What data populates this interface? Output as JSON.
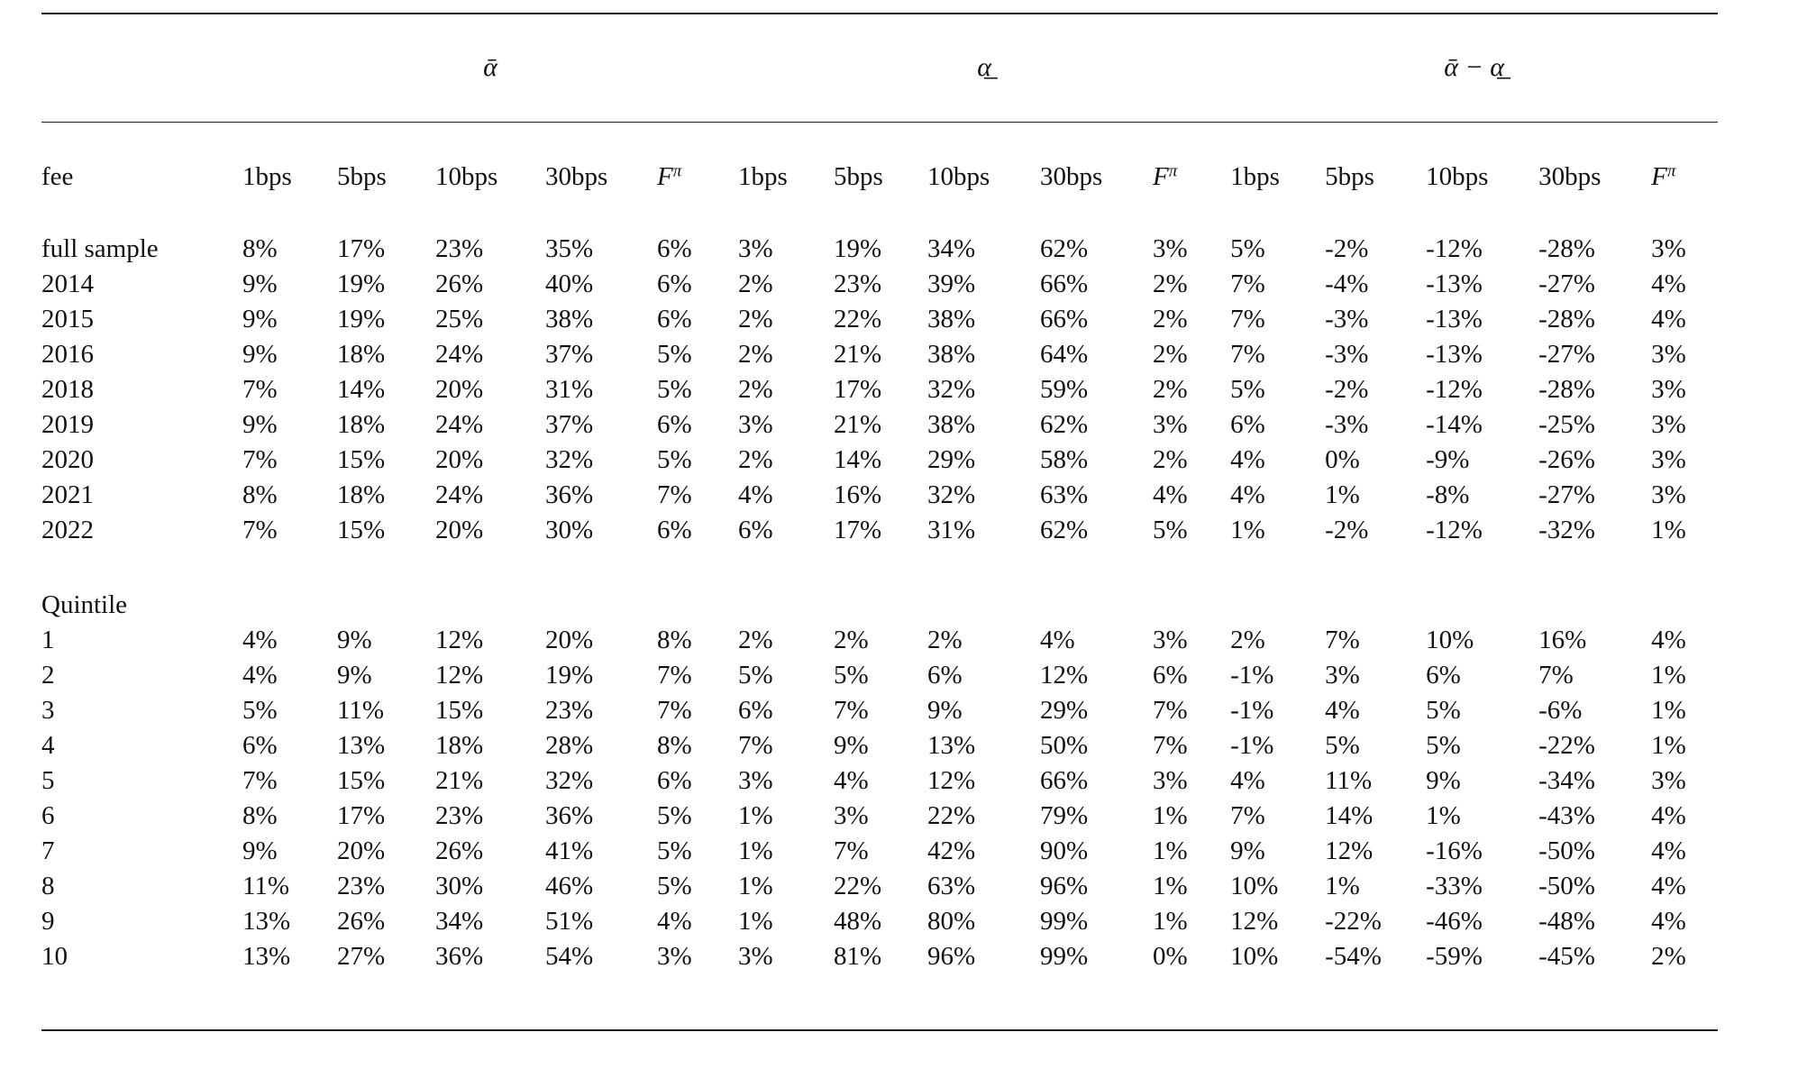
{
  "table": {
    "group_headers": [
      "ᾱ",
      "α̲",
      "ᾱ − α̲"
    ],
    "row_header": "fee",
    "sub_headers": [
      "1bps",
      "5bps",
      "10bps",
      "30bps",
      "F^π"
    ],
    "sections": [
      {
        "rows": [
          {
            "label": "full sample",
            "values": [
              "8%",
              "17%",
              "23%",
              "35%",
              "6%",
              "3%",
              "19%",
              "34%",
              "62%",
              "3%",
              "5%",
              "-2%",
              "-12%",
              "-28%",
              "3%"
            ]
          },
          {
            "label": "2014",
            "values": [
              "9%",
              "19%",
              "26%",
              "40%",
              "6%",
              "2%",
              "23%",
              "39%",
              "66%",
              "2%",
              "7%",
              "-4%",
              "-13%",
              "-27%",
              "4%"
            ]
          },
          {
            "label": "2015",
            "values": [
              "9%",
              "19%",
              "25%",
              "38%",
              "6%",
              "2%",
              "22%",
              "38%",
              "66%",
              "2%",
              "7%",
              "-3%",
              "-13%",
              "-28%",
              "4%"
            ]
          },
          {
            "label": "2016",
            "values": [
              "9%",
              "18%",
              "24%",
              "37%",
              "5%",
              "2%",
              "21%",
              "38%",
              "64%",
              "2%",
              "7%",
              "-3%",
              "-13%",
              "-27%",
              "3%"
            ]
          },
          {
            "label": "2018",
            "values": [
              "7%",
              "14%",
              "20%",
              "31%",
              "5%",
              "2%",
              "17%",
              "32%",
              "59%",
              "2%",
              "5%",
              "-2%",
              "-12%",
              "-28%",
              "3%"
            ]
          },
          {
            "label": "2019",
            "values": [
              "9%",
              "18%",
              "24%",
              "37%",
              "6%",
              "3%",
              "21%",
              "38%",
              "62%",
              "3%",
              "6%",
              "-3%",
              "-14%",
              "-25%",
              "3%"
            ]
          },
          {
            "label": "2020",
            "values": [
              "7%",
              "15%",
              "20%",
              "32%",
              "5%",
              "2%",
              "14%",
              "29%",
              "58%",
              "2%",
              "4%",
              "0%",
              "-9%",
              "-26%",
              "3%"
            ]
          },
          {
            "label": "2021",
            "values": [
              "8%",
              "18%",
              "24%",
              "36%",
              "7%",
              "4%",
              "16%",
              "32%",
              "63%",
              "4%",
              "4%",
              "1%",
              "-8%",
              "-27%",
              "3%"
            ]
          },
          {
            "label": "2022",
            "values": [
              "7%",
              "15%",
              "20%",
              "30%",
              "6%",
              "6%",
              "17%",
              "31%",
              "62%",
              "5%",
              "1%",
              "-2%",
              "-12%",
              "-32%",
              "1%"
            ]
          }
        ]
      },
      {
        "title": "Quintile",
        "rows": [
          {
            "label": "1",
            "values": [
              "4%",
              "9%",
              "12%",
              "20%",
              "8%",
              "2%",
              "2%",
              "2%",
              "4%",
              "3%",
              "2%",
              "7%",
              "10%",
              "16%",
              "4%"
            ]
          },
          {
            "label": "2",
            "values": [
              "4%",
              "9%",
              "12%",
              "19%",
              "7%",
              "5%",
              "5%",
              "6%",
              "12%",
              "6%",
              "-1%",
              "3%",
              "6%",
              "7%",
              "1%"
            ]
          },
          {
            "label": "3",
            "values": [
              "5%",
              "11%",
              "15%",
              "23%",
              "7%",
              "6%",
              "7%",
              "9%",
              "29%",
              "7%",
              "-1%",
              "4%",
              "5%",
              "-6%",
              "1%"
            ]
          },
          {
            "label": "4",
            "values": [
              "6%",
              "13%",
              "18%",
              "28%",
              "8%",
              "7%",
              "9%",
              "13%",
              "50%",
              "7%",
              "-1%",
              "5%",
              "5%",
              "-22%",
              "1%"
            ]
          },
          {
            "label": "5",
            "values": [
              "7%",
              "15%",
              "21%",
              "32%",
              "6%",
              "3%",
              "4%",
              "12%",
              "66%",
              "3%",
              "4%",
              "11%",
              "9%",
              "-34%",
              "3%"
            ]
          },
          {
            "label": "6",
            "values": [
              "8%",
              "17%",
              "23%",
              "36%",
              "5%",
              "1%",
              "3%",
              "22%",
              "79%",
              "1%",
              "7%",
              "14%",
              "1%",
              "-43%",
              "4%"
            ]
          },
          {
            "label": "7",
            "values": [
              "9%",
              "20%",
              "26%",
              "41%",
              "5%",
              "1%",
              "7%",
              "42%",
              "90%",
              "1%",
              "9%",
              "12%",
              "-16%",
              "-50%",
              "4%"
            ]
          },
          {
            "label": "8",
            "values": [
              "11%",
              "23%",
              "30%",
              "46%",
              "5%",
              "1%",
              "22%",
              "63%",
              "96%",
              "1%",
              "10%",
              "1%",
              "-33%",
              "-50%",
              "4%"
            ]
          },
          {
            "label": "9",
            "values": [
              "13%",
              "26%",
              "34%",
              "51%",
              "4%",
              "1%",
              "48%",
              "80%",
              "99%",
              "1%",
              "12%",
              "-22%",
              "-46%",
              "-48%",
              "4%"
            ]
          },
          {
            "label": "10",
            "values": [
              "13%",
              "27%",
              "36%",
              "54%",
              "3%",
              "3%",
              "81%",
              "96%",
              "99%",
              "0%",
              "10%",
              "-54%",
              "-59%",
              "-45%",
              "2%"
            ]
          }
        ]
      }
    ]
  }
}
